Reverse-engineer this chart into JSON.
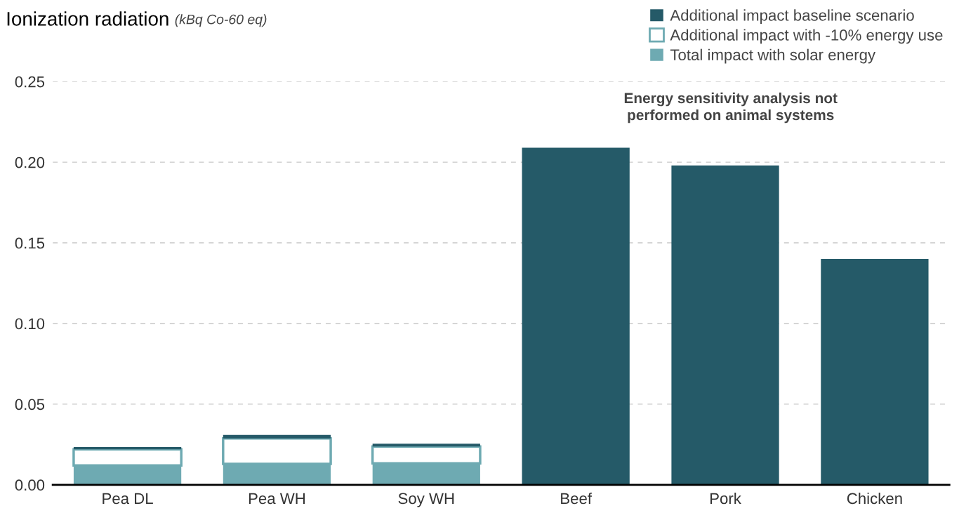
{
  "chart_data": {
    "type": "bar",
    "title": "Ionization radiation",
    "subtitle": "(kBq Co-60 eq)",
    "categories": [
      "Pea DL",
      "Pea WH",
      "Soy WH",
      "Beef",
      "Pork",
      "Chicken"
    ],
    "stacked": true,
    "series": [
      {
        "name": "Total impact with solar energy",
        "color": "#6eaab2",
        "values": [
          0.012,
          0.013,
          0.0133,
          null,
          null,
          null
        ]
      },
      {
        "name": "Additional impact with -10% energy use",
        "color": "#ffffff",
        "values": [
          0.01,
          0.0157,
          0.0104,
          null,
          null,
          null
        ]
      },
      {
        "name": "Additional impact baseline scenario",
        "color": "#255a68",
        "values": [
          0.0014,
          0.0022,
          0.0018,
          0.209,
          0.198,
          0.14
        ]
      }
    ],
    "ylim": [
      0,
      0.25
    ],
    "yticks": [
      {
        "value": 0,
        "label": "0.00"
      },
      0.05,
      {
        "value": 0.1,
        "label": "0.10"
      },
      0.15,
      {
        "value": 0.2,
        "label": "0.20"
      },
      0.25
    ],
    "grid": "y",
    "legend": "top right",
    "annotations": [
      "Energy sensitivity analysis not\nperformed on animal systems"
    ]
  }
}
